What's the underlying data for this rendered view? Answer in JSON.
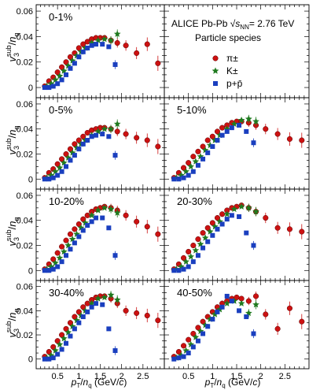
{
  "figure": {
    "collaboration": "ALICE Pb-Pb",
    "energy": "= 2.76 TeV",
    "species_title": "Particle species",
    "legend": [
      {
        "label": "π±",
        "marker": "circle",
        "color": "#cc1111"
      },
      {
        "label": "K±",
        "marker": "star",
        "color": "#1f7a1f"
      },
      {
        "label": "p+p̄",
        "marker": "square",
        "color": "#1a3fbf"
      }
    ],
    "x_tick_labels": [
      "0.5",
      "1",
      "1.5",
      "2",
      "2.5"
    ],
    "y_tick_labels": [
      "0",
      "0.02",
      "0.04",
      "0.06"
    ]
  },
  "chart_data": [
    {
      "type": "scatter",
      "title": "0-1%",
      "xlim": [
        0,
        3.0
      ],
      "ylim": [
        -0.008,
        0.065
      ],
      "xlabel": "pT/nq (GeV/c)",
      "ylabel": "v3sub/nq",
      "series": [
        {
          "name": "π±",
          "x": [
            0.2,
            0.3,
            0.4,
            0.5,
            0.6,
            0.7,
            0.8,
            0.9,
            1.0,
            1.1,
            1.2,
            1.3,
            1.4,
            1.5,
            1.6,
            1.75,
            1.9,
            2.1,
            2.35,
            2.6,
            2.85
          ],
          "y": [
            0.001,
            0.005,
            0.008,
            0.012,
            0.016,
            0.02,
            0.024,
            0.027,
            0.031,
            0.034,
            0.036,
            0.038,
            0.039,
            0.039,
            0.039,
            0.037,
            0.035,
            0.033,
            0.027,
            0.034,
            0.019
          ]
        },
        {
          "name": "K±",
          "x": [
            0.25,
            0.35,
            0.45,
            0.55,
            0.65,
            0.75,
            0.85,
            0.95,
            1.05,
            1.15,
            1.3,
            1.45,
            1.6,
            1.75,
            1.9
          ],
          "y": [
            0.001,
            0.003,
            0.006,
            0.009,
            0.013,
            0.017,
            0.021,
            0.025,
            0.028,
            0.031,
            0.035,
            0.037,
            0.038,
            0.037,
            0.042
          ]
        },
        {
          "name": "p+p̄",
          "x": [
            0.2,
            0.3,
            0.4,
            0.5,
            0.6,
            0.7,
            0.8,
            0.9,
            1.0,
            1.1,
            1.2,
            1.3,
            1.4,
            1.55,
            1.7,
            1.85
          ],
          "y": [
            0.0,
            0.0,
            0.001,
            0.003,
            0.006,
            0.01,
            0.015,
            0.019,
            0.024,
            0.028,
            0.031,
            0.033,
            0.034,
            0.034,
            0.032,
            0.018
          ]
        }
      ]
    },
    {
      "type": "scatter",
      "title": "",
      "xlim": [
        0,
        3.0
      ],
      "ylim": [
        -0.008,
        0.065
      ],
      "series": []
    },
    {
      "type": "scatter",
      "title": "0-5%",
      "xlim": [
        0,
        3.0
      ],
      "ylim": [
        -0.008,
        0.065
      ],
      "series": [
        {
          "name": "π±",
          "x": [
            0.2,
            0.3,
            0.4,
            0.5,
            0.6,
            0.7,
            0.8,
            0.9,
            1.0,
            1.1,
            1.2,
            1.3,
            1.4,
            1.5,
            1.6,
            1.75,
            1.9,
            2.1,
            2.35,
            2.6,
            2.85
          ],
          "y": [
            0.001,
            0.005,
            0.008,
            0.012,
            0.016,
            0.02,
            0.024,
            0.028,
            0.031,
            0.034,
            0.037,
            0.039,
            0.04,
            0.041,
            0.041,
            0.04,
            0.038,
            0.036,
            0.033,
            0.031,
            0.026
          ]
        },
        {
          "name": "K±",
          "x": [
            0.25,
            0.35,
            0.45,
            0.55,
            0.65,
            0.75,
            0.85,
            0.95,
            1.05,
            1.15,
            1.3,
            1.45,
            1.6,
            1.75,
            1.9
          ],
          "y": [
            0.001,
            0.003,
            0.006,
            0.009,
            0.013,
            0.017,
            0.021,
            0.025,
            0.028,
            0.031,
            0.035,
            0.038,
            0.04,
            0.04,
            0.044
          ]
        },
        {
          "name": "p+p̄",
          "x": [
            0.2,
            0.3,
            0.4,
            0.5,
            0.6,
            0.7,
            0.8,
            0.9,
            1.0,
            1.1,
            1.2,
            1.3,
            1.4,
            1.55,
            1.7,
            1.85
          ],
          "y": [
            0.0,
            0.0,
            0.001,
            0.003,
            0.006,
            0.01,
            0.015,
            0.019,
            0.024,
            0.028,
            0.031,
            0.034,
            0.035,
            0.036,
            0.034,
            0.019
          ]
        }
      ]
    },
    {
      "type": "scatter",
      "title": "5-10%",
      "xlim": [
        0,
        3.0
      ],
      "ylim": [
        -0.008,
        0.065
      ],
      "series": [
        {
          "name": "π±",
          "x": [
            0.2,
            0.3,
            0.4,
            0.5,
            0.6,
            0.7,
            0.8,
            0.9,
            1.0,
            1.1,
            1.2,
            1.3,
            1.4,
            1.5,
            1.6,
            1.75,
            1.9,
            2.1,
            2.35,
            2.6,
            2.85
          ],
          "y": [
            0.001,
            0.005,
            0.009,
            0.013,
            0.018,
            0.022,
            0.026,
            0.031,
            0.034,
            0.038,
            0.041,
            0.043,
            0.045,
            0.046,
            0.046,
            0.045,
            0.043,
            0.04,
            0.036,
            0.032,
            0.031
          ]
        },
        {
          "name": "K±",
          "x": [
            0.25,
            0.35,
            0.45,
            0.55,
            0.65,
            0.75,
            0.85,
            0.95,
            1.05,
            1.15,
            1.3,
            1.45,
            1.6,
            1.75,
            1.9
          ],
          "y": [
            0.001,
            0.003,
            0.006,
            0.01,
            0.014,
            0.018,
            0.023,
            0.027,
            0.031,
            0.035,
            0.04,
            0.044,
            0.047,
            0.048,
            0.046
          ]
        },
        {
          "name": "p+p̄",
          "x": [
            0.2,
            0.3,
            0.4,
            0.5,
            0.6,
            0.7,
            0.8,
            0.9,
            1.0,
            1.1,
            1.2,
            1.3,
            1.4,
            1.55,
            1.7,
            1.85
          ],
          "y": [
            0.0,
            0.0,
            0.001,
            0.003,
            0.006,
            0.011,
            0.016,
            0.021,
            0.026,
            0.031,
            0.035,
            0.038,
            0.041,
            0.043,
            0.038,
            0.029
          ]
        }
      ]
    },
    {
      "type": "scatter",
      "title": "10-20%",
      "xlim": [
        0,
        3.0
      ],
      "ylim": [
        -0.008,
        0.065
      ],
      "series": [
        {
          "name": "π±",
          "x": [
            0.2,
            0.3,
            0.4,
            0.5,
            0.6,
            0.7,
            0.8,
            0.9,
            1.0,
            1.1,
            1.2,
            1.3,
            1.4,
            1.5,
            1.6,
            1.75,
            1.9,
            2.1,
            2.35,
            2.6,
            2.85
          ],
          "y": [
            0.001,
            0.005,
            0.009,
            0.014,
            0.019,
            0.024,
            0.029,
            0.033,
            0.037,
            0.041,
            0.044,
            0.047,
            0.049,
            0.05,
            0.051,
            0.05,
            0.048,
            0.044,
            0.039,
            0.035,
            0.029
          ]
        },
        {
          "name": "K±",
          "x": [
            0.25,
            0.35,
            0.45,
            0.55,
            0.65,
            0.75,
            0.85,
            0.95,
            1.05,
            1.15,
            1.3,
            1.45,
            1.6,
            1.75,
            1.9
          ],
          "y": [
            0.001,
            0.003,
            0.006,
            0.01,
            0.015,
            0.02,
            0.025,
            0.029,
            0.034,
            0.038,
            0.044,
            0.048,
            0.05,
            0.049,
            0.046
          ]
        },
        {
          "name": "p+p̄",
          "x": [
            0.2,
            0.3,
            0.4,
            0.5,
            0.6,
            0.7,
            0.8,
            0.9,
            1.0,
            1.1,
            1.2,
            1.3,
            1.4,
            1.55,
            1.7,
            1.85
          ],
          "y": [
            0.0,
            0.0,
            0.001,
            0.003,
            0.007,
            0.012,
            0.017,
            0.022,
            0.027,
            0.032,
            0.036,
            0.039,
            0.042,
            0.042,
            0.034,
            0.012
          ]
        }
      ]
    },
    {
      "type": "scatter",
      "title": "20-30%",
      "xlim": [
        0,
        3.0
      ],
      "ylim": [
        -0.008,
        0.065
      ],
      "series": [
        {
          "name": "π±",
          "x": [
            0.2,
            0.3,
            0.4,
            0.5,
            0.6,
            0.7,
            0.8,
            0.9,
            1.0,
            1.1,
            1.2,
            1.3,
            1.4,
            1.5,
            1.6,
            1.75,
            1.9,
            2.1,
            2.35,
            2.6,
            2.85
          ],
          "y": [
            0.001,
            0.005,
            0.01,
            0.015,
            0.02,
            0.025,
            0.03,
            0.034,
            0.038,
            0.042,
            0.045,
            0.048,
            0.05,
            0.051,
            0.052,
            0.05,
            0.047,
            0.042,
            0.034,
            0.033,
            0.031
          ]
        },
        {
          "name": "K±",
          "x": [
            0.25,
            0.35,
            0.45,
            0.55,
            0.65,
            0.75,
            0.85,
            0.95,
            1.05,
            1.15,
            1.3,
            1.45,
            1.6,
            1.75,
            1.9
          ],
          "y": [
            0.001,
            0.003,
            0.007,
            0.011,
            0.016,
            0.021,
            0.026,
            0.031,
            0.035,
            0.039,
            0.045,
            0.049,
            0.051,
            0.05,
            0.047
          ]
        },
        {
          "name": "p+p̄",
          "x": [
            0.2,
            0.3,
            0.4,
            0.5,
            0.6,
            0.7,
            0.8,
            0.9,
            1.0,
            1.1,
            1.2,
            1.3,
            1.4,
            1.55,
            1.7,
            1.85
          ],
          "y": [
            0.0,
            0.0,
            0.001,
            0.003,
            0.007,
            0.012,
            0.018,
            0.023,
            0.028,
            0.033,
            0.037,
            0.041,
            0.044,
            0.043,
            0.03,
            0.02
          ]
        }
      ]
    },
    {
      "type": "scatter",
      "title": "30-40%",
      "xlim": [
        0,
        3.0
      ],
      "ylim": [
        -0.008,
        0.065
      ],
      "series": [
        {
          "name": "π±",
          "x": [
            0.2,
            0.3,
            0.4,
            0.5,
            0.6,
            0.7,
            0.8,
            0.9,
            1.0,
            1.1,
            1.2,
            1.3,
            1.4,
            1.5,
            1.6,
            1.75,
            1.9,
            2.1,
            2.35,
            2.6,
            2.85
          ],
          "y": [
            0.002,
            0.006,
            0.01,
            0.015,
            0.02,
            0.025,
            0.03,
            0.035,
            0.039,
            0.043,
            0.046,
            0.049,
            0.051,
            0.052,
            0.052,
            0.05,
            0.046,
            0.04,
            0.038,
            0.036,
            0.032
          ]
        },
        {
          "name": "K±",
          "x": [
            0.25,
            0.35,
            0.45,
            0.55,
            0.65,
            0.75,
            0.85,
            0.95,
            1.05,
            1.15,
            1.3,
            1.45,
            1.6,
            1.75,
            1.9
          ],
          "y": [
            0.001,
            0.003,
            0.007,
            0.012,
            0.017,
            0.022,
            0.027,
            0.032,
            0.036,
            0.04,
            0.046,
            0.05,
            0.051,
            0.053,
            0.049
          ]
        },
        {
          "name": "p+p̄",
          "x": [
            0.2,
            0.3,
            0.4,
            0.5,
            0.6,
            0.7,
            0.8,
            0.9,
            1.0,
            1.1,
            1.2,
            1.3,
            1.4,
            1.55,
            1.7,
            1.85
          ],
          "y": [
            0.0,
            0.0,
            0.001,
            0.004,
            0.008,
            0.013,
            0.019,
            0.025,
            0.03,
            0.035,
            0.039,
            0.043,
            0.046,
            0.045,
            0.025,
            0.007
          ]
        }
      ]
    },
    {
      "type": "scatter",
      "title": "40-50%",
      "xlim": [
        0,
        3.0
      ],
      "ylim": [
        -0.008,
        0.065
      ],
      "series": [
        {
          "name": "π±",
          "x": [
            0.2,
            0.3,
            0.4,
            0.5,
            0.6,
            0.7,
            0.8,
            0.9,
            1.0,
            1.1,
            1.2,
            1.3,
            1.4,
            1.5,
            1.6,
            1.75,
            1.9,
            2.1,
            2.35,
            2.6,
            2.85
          ],
          "y": [
            0.002,
            0.006,
            0.011,
            0.016,
            0.021,
            0.026,
            0.031,
            0.035,
            0.039,
            0.043,
            0.046,
            0.048,
            0.05,
            0.051,
            0.05,
            0.048,
            0.052,
            0.037,
            0.025,
            0.042,
            0.031
          ]
        },
        {
          "name": "K±",
          "x": [
            0.25,
            0.35,
            0.45,
            0.55,
            0.65,
            0.75,
            0.85,
            0.95,
            1.05,
            1.15,
            1.3,
            1.45,
            1.6,
            1.75,
            1.9
          ],
          "y": [
            0.001,
            0.003,
            0.007,
            0.012,
            0.018,
            0.023,
            0.028,
            0.033,
            0.037,
            0.041,
            0.046,
            0.048,
            0.046,
            0.038,
            0.045
          ]
        },
        {
          "name": "p+p̄",
          "x": [
            0.2,
            0.3,
            0.4,
            0.5,
            0.6,
            0.7,
            0.8,
            0.9,
            1.0,
            1.1,
            1.2,
            1.3,
            1.4,
            1.55,
            1.7,
            1.85
          ],
          "y": [
            0.0,
            0.001,
            0.002,
            0.005,
            0.01,
            0.015,
            0.021,
            0.027,
            0.033,
            0.039,
            0.043,
            0.052,
            0.048,
            0.04,
            0.035,
            0.021
          ]
        }
      ]
    }
  ]
}
